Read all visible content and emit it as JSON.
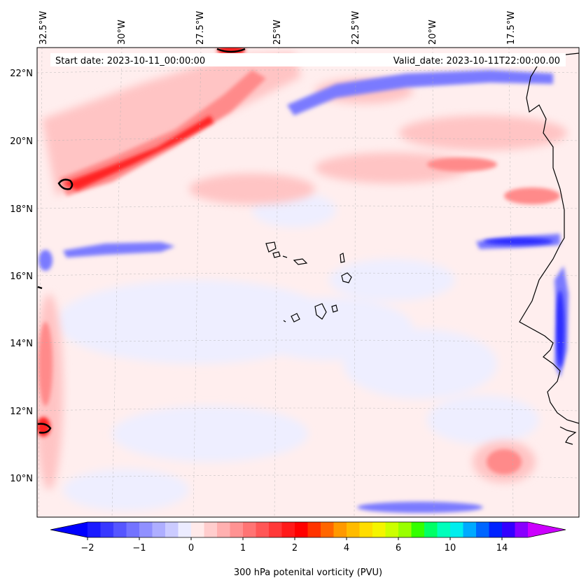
{
  "map": {
    "start_label": "Start date: 2023-10-11_00:00:00",
    "valid_label": "Valid_date: 2023-10-11T22:00:00.00",
    "lon_labels": [
      "32.5°W",
      "30°W",
      "27.5°W",
      "25°W",
      "22.5°W",
      "20°W",
      "17.5°W"
    ],
    "lat_labels": [
      "22°N",
      "20°N",
      "18°N",
      "16°N",
      "14°N",
      "12°N",
      "10°N"
    ],
    "colorbar_label": "300 hPa potenital vorticity (PVU)",
    "colorbar_ticks": [
      "−2",
      "−1",
      "0",
      "1",
      "2",
      "4",
      "6",
      "10",
      "14"
    ],
    "colorbar_colors": [
      "#1a1aff",
      "#3838ff",
      "#5555ff",
      "#7373ff",
      "#9090ff",
      "#aeaeff",
      "#cbcbff",
      "#ececff",
      "#ffeaea",
      "#ffcdcd",
      "#ffb0b0",
      "#ff9292",
      "#ff7474",
      "#ff5656",
      "#ff3838",
      "#ff1a1a",
      "#ff0000",
      "#ff3300",
      "#ff6600",
      "#ff9900",
      "#ffbb00",
      "#ffdd00",
      "#f5f500",
      "#ccff00",
      "#99ff00",
      "#33ff00",
      "#00ff66",
      "#00ffbb",
      "#00eeee",
      "#00aaff",
      "#0066ff",
      "#0022ff",
      "#3300ff",
      "#8800ff"
    ],
    "colorbar_under": "#0000ff",
    "colorbar_over": "#cc00ff",
    "background_color": "#ffeeee"
  }
}
